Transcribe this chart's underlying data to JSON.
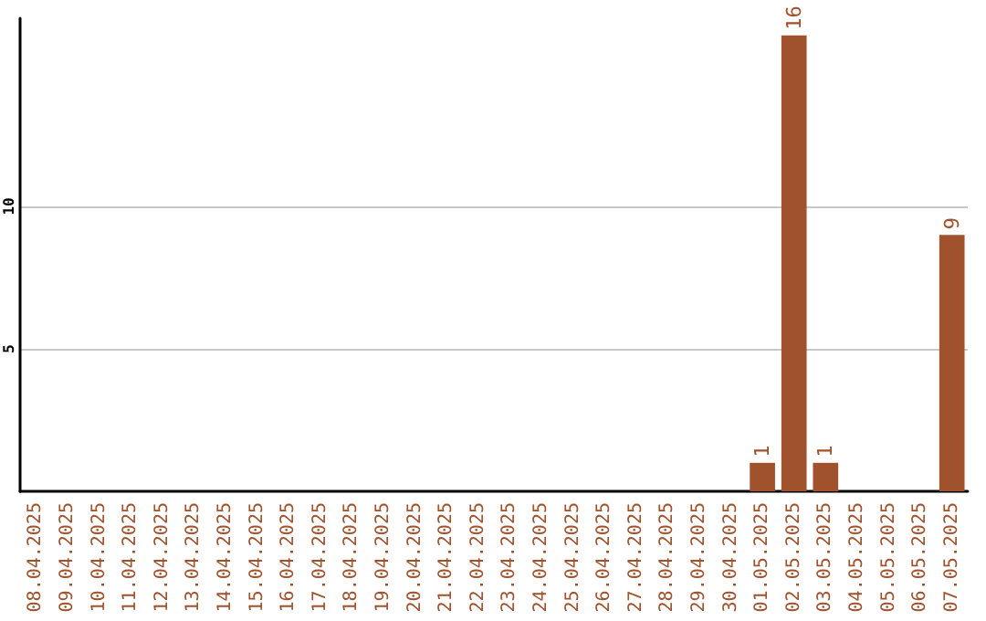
{
  "chart_data": {
    "type": "bar",
    "categories": [
      "08.04.2025",
      "09.04.2025",
      "10.04.2025",
      "11.04.2025",
      "12.04.2025",
      "13.04.2025",
      "14.04.2025",
      "15.04.2025",
      "16.04.2025",
      "17.04.2025",
      "18.04.2025",
      "19.04.2025",
      "20.04.2025",
      "21.04.2025",
      "22.04.2025",
      "23.04.2025",
      "24.04.2025",
      "25.04.2025",
      "26.04.2025",
      "27.04.2025",
      "28.04.2025",
      "29.04.2025",
      "30.04.2025",
      "01.05.2025",
      "02.05.2025",
      "03.05.2025",
      "04.05.2025",
      "05.05.2025",
      "06.05.2025",
      "07.05.2025"
    ],
    "values": [
      0,
      0,
      0,
      0,
      0,
      0,
      0,
      0,
      0,
      0,
      0,
      0,
      0,
      0,
      0,
      0,
      0,
      0,
      0,
      0,
      0,
      0,
      0,
      1,
      16,
      1,
      0,
      0,
      0,
      9
    ],
    "value_labels": [
      null,
      null,
      null,
      null,
      null,
      null,
      null,
      null,
      null,
      null,
      null,
      null,
      null,
      null,
      null,
      null,
      null,
      null,
      null,
      null,
      null,
      null,
      null,
      "1",
      "16",
      "1",
      null,
      null,
      null,
      "9"
    ],
    "color": "#a0522d",
    "ylim": [
      0,
      16.6
    ],
    "yticks": [
      5,
      10
    ],
    "grid": "y"
  }
}
